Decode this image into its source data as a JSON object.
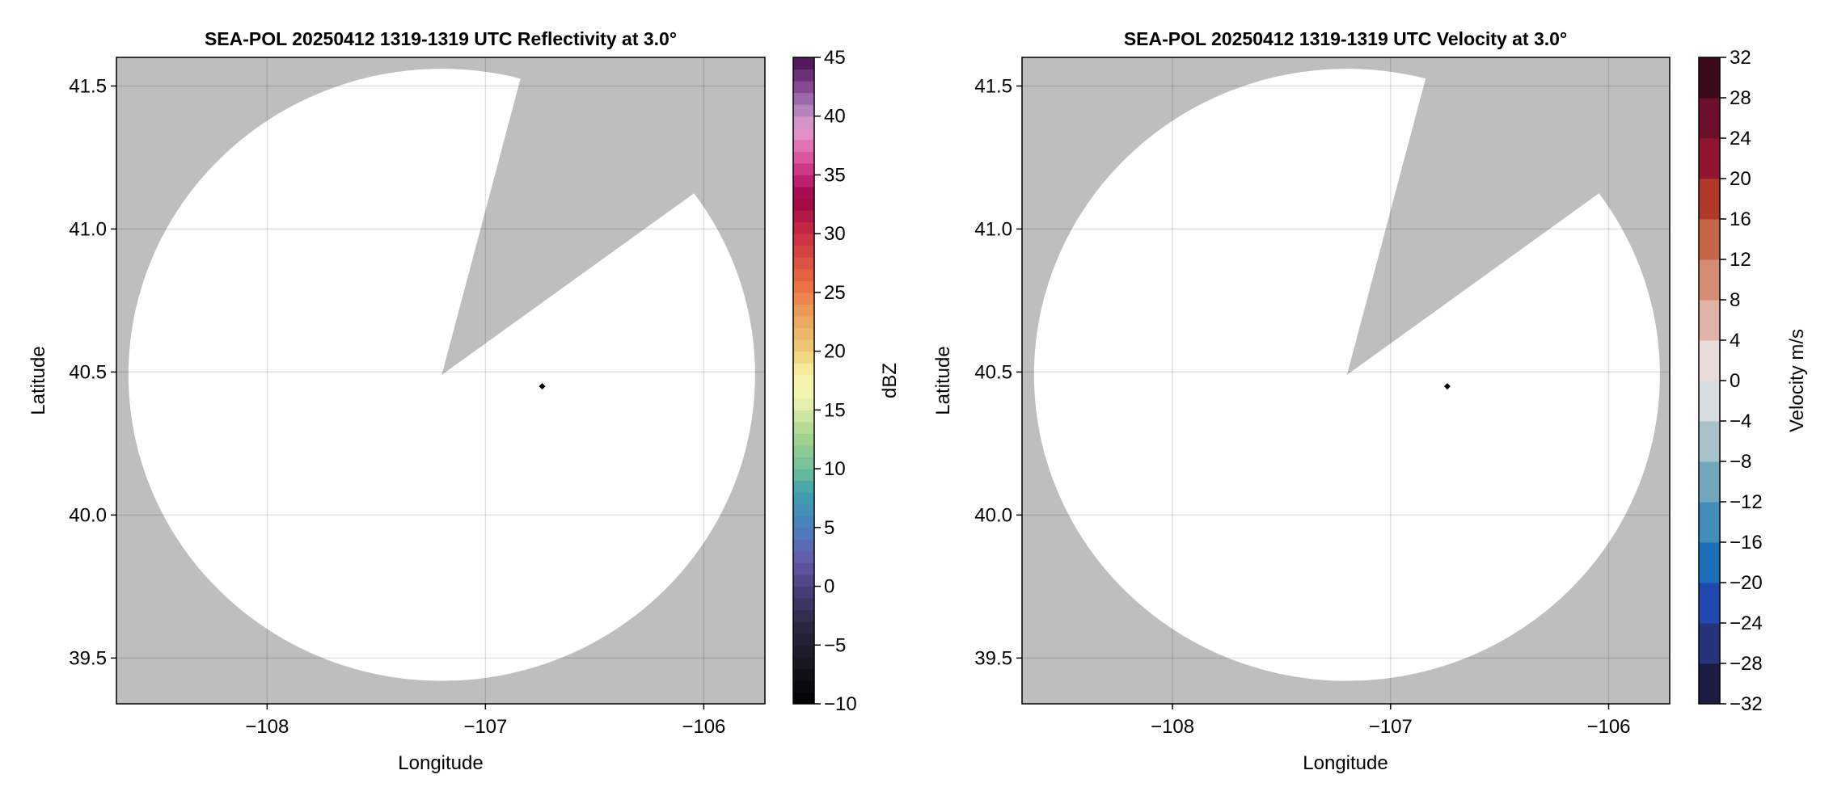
{
  "chart_data": [
    {
      "type": "heatmap",
      "title": "SEA-POL 20250412 1319-1319 UTC Reflectivity at 3.0°",
      "xlabel": "Longitude",
      "ylabel": "Latitude",
      "xlim": [
        -108.69,
        -105.72
      ],
      "ylim": [
        39.34,
        41.6
      ],
      "xticks": [
        -108,
        -107,
        -106
      ],
      "xtick_labels": [
        "−108",
        "−107",
        "−106"
      ],
      "yticks": [
        39.5,
        40.0,
        40.5,
        41.0,
        41.5
      ],
      "ytick_labels": [
        "39.5",
        "40.0",
        "40.5",
        "41.0",
        "41.5"
      ],
      "grid": true,
      "background_color": "#bebebe",
      "data_color": "#ffffff",
      "range_ring": {
        "center_lon": -107.2,
        "center_lat": 40.49,
        "radius_lon": 1.435,
        "radius_lat": 1.07
      },
      "blank_sector": [
        [
          -107.2,
          40.49
        ],
        [
          -106.84,
          41.524
        ],
        [
          -106.053,
          41.12
        ]
      ],
      "marker": {
        "lon": -106.74,
        "lat": 40.45,
        "color": "#000000"
      },
      "colorbar": {
        "label": "dBZ",
        "range": [
          -10,
          45
        ],
        "step": 1,
        "ticks": [
          -10,
          -5,
          0,
          5,
          10,
          15,
          20,
          25,
          30,
          35,
          40,
          45
        ],
        "tick_labels": [
          "−10",
          "−5",
          "0",
          "5",
          "10",
          "15",
          "20",
          "25",
          "30",
          "35",
          "40",
          "45"
        ],
        "stops": [
          [
            -10,
            "#000000"
          ],
          [
            -7,
            "#15131c"
          ],
          [
            -3,
            "#2d2a45"
          ],
          [
            0,
            "#4c4180"
          ],
          [
            2,
            "#6458a8"
          ],
          [
            5,
            "#4a7fc0"
          ],
          [
            8,
            "#3fa0ad"
          ],
          [
            10,
            "#6fbf98"
          ],
          [
            13,
            "#a8d490"
          ],
          [
            16,
            "#f0f5b0"
          ],
          [
            18,
            "#f8f3a8"
          ],
          [
            20,
            "#efcc78"
          ],
          [
            23,
            "#eba25c"
          ],
          [
            26,
            "#e8693f"
          ],
          [
            30,
            "#c82e45"
          ],
          [
            33,
            "#9e0345"
          ],
          [
            35,
            "#c62a7c"
          ],
          [
            37,
            "#e065a8"
          ],
          [
            39,
            "#e09ecf"
          ],
          [
            41,
            "#a878b8"
          ],
          [
            43,
            "#7a3888"
          ],
          [
            45,
            "#45104f"
          ]
        ]
      }
    },
    {
      "type": "heatmap",
      "title": "SEA-POL 20250412 1319-1319 UTC Velocity at 3.0°",
      "xlabel": "Longitude",
      "ylabel": "Latitude",
      "xlim": [
        -108.69,
        -105.72
      ],
      "ylim": [
        39.34,
        41.6
      ],
      "xticks": [
        -108,
        -107,
        -106
      ],
      "xtick_labels": [
        "−108",
        "−107",
        "−106"
      ],
      "yticks": [
        39.5,
        40.0,
        40.5,
        41.0,
        41.5
      ],
      "ytick_labels": [
        "39.5",
        "40.0",
        "40.5",
        "41.0",
        "41.5"
      ],
      "grid": true,
      "background_color": "#bebebe",
      "data_color": "#ffffff",
      "range_ring": {
        "center_lon": -107.2,
        "center_lat": 40.49,
        "radius_lon": 1.435,
        "radius_lat": 1.07
      },
      "blank_sector": [
        [
          -107.2,
          40.49
        ],
        [
          -106.84,
          41.524
        ],
        [
          -106.053,
          41.12
        ]
      ],
      "marker": {
        "lon": -106.74,
        "lat": 40.45,
        "color": "#000000"
      },
      "colorbar": {
        "label": "Velocity m/s",
        "range": [
          -32,
          32
        ],
        "step": 4,
        "ticks": [
          -32,
          -28,
          -24,
          -20,
          -16,
          -12,
          -8,
          -4,
          0,
          4,
          8,
          12,
          16,
          20,
          24,
          28,
          32
        ],
        "tick_labels": [
          "−32",
          "−28",
          "−24",
          "−20",
          "−16",
          "−12",
          "−8",
          "−4",
          "0",
          "4",
          "8",
          "12",
          "16",
          "20",
          "24",
          "28",
          "32"
        ],
        "band_colors": [
          "#1a1c40",
          "#26327a",
          "#2249b0",
          "#1a6fb8",
          "#438dba",
          "#72a7bd",
          "#a8c2ca",
          "#d8dde0",
          "#e8dcd8",
          "#dfb3a6",
          "#d48c72",
          "#c46545",
          "#b03a28",
          "#8f1530",
          "#6b0f2a",
          "#3a0a18"
        ]
      }
    }
  ]
}
